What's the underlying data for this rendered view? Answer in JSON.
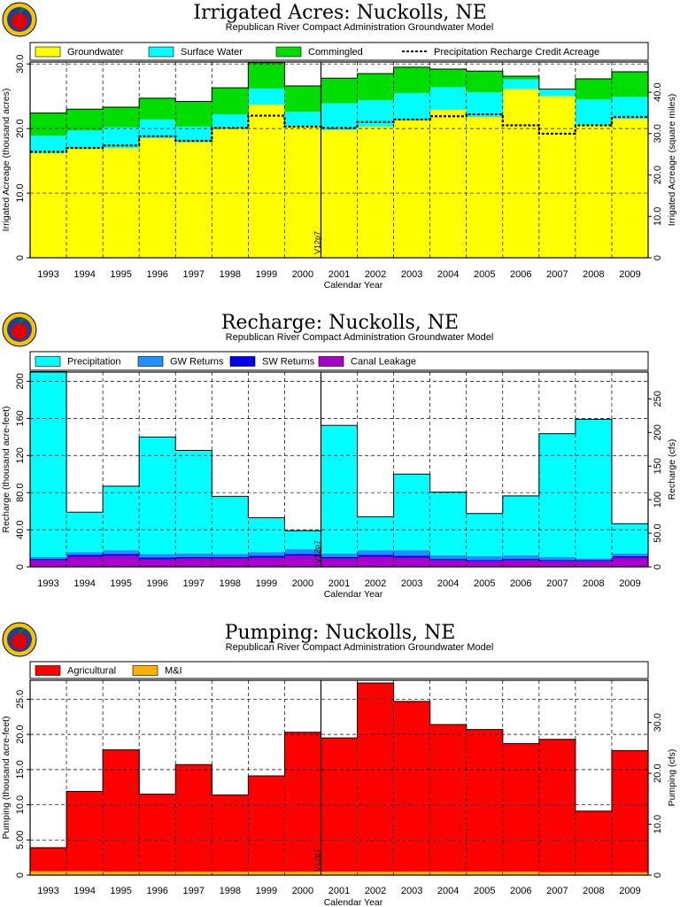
{
  "chart_data": [
    {
      "type": "area",
      "title": "Irrigated Acres: Nuckolls, NE",
      "subtitle": "Republican River Compact Administration Groundwater Model",
      "xlabel": "Calendar Year",
      "ylabel": "Irrigated Acreage (thousand acres)",
      "y2label": "Irrigated Acreage (square miles)",
      "categories": [
        "1993",
        "1994",
        "1995",
        "1996",
        "1997",
        "1998",
        "1999",
        "2000",
        "2001",
        "2002",
        "2003",
        "2004",
        "2005",
        "2006",
        "2007",
        "2008",
        "2009"
      ],
      "ylim": [
        0,
        30.3
      ],
      "yticks": [
        "0",
        "10.0",
        "20.0",
        "30.0"
      ],
      "y2lim": [
        0,
        47.3
      ],
      "y2ticks": [
        "0",
        "10.0",
        "20.0",
        "30.0",
        "40.0"
      ],
      "series": [
        {
          "name": "Groundwater",
          "color": "#ffff00",
          "values": [
            16.2,
            16.9,
            17.0,
            18.5,
            17.9,
            20.0,
            23.7,
            20.4,
            19.8,
            20.3,
            21.3,
            22.9,
            21.8,
            26.1,
            25.0,
            20.6,
            21.5
          ]
        },
        {
          "name": "Surface Water",
          "color": "#00ffff",
          "values": [
            2.7,
            2.8,
            3.2,
            2.9,
            2.4,
            2.2,
            2.5,
            2.2,
            4.1,
            4.1,
            4.2,
            3.5,
            3.8,
            1.5,
            1.1,
            3.9,
            3.4
          ]
        },
        {
          "name": "Commingled",
          "color": "#00dd00",
          "values": [
            3.5,
            3.3,
            3.1,
            3.3,
            3.9,
            4.1,
            4.0,
            4.0,
            3.9,
            4.1,
            4.0,
            2.8,
            3.3,
            0.5,
            0,
            3.2,
            3.9
          ]
        }
      ],
      "line_series": {
        "name": "Precipitation Recharge Credit Acreage",
        "values": [
          16.4,
          17.0,
          17.4,
          18.8,
          18.1,
          20.1,
          22.0,
          20.3,
          20.1,
          21.0,
          21.4,
          21.9,
          22.2,
          20.5,
          19.2,
          20.5,
          21.8
        ]
      },
      "vline_label": "V12p7",
      "grid": true,
      "legend_position": "top"
    },
    {
      "type": "area",
      "title": "Recharge: Nuckolls, NE",
      "subtitle": "Republican River Compact Administration Groundwater Model",
      "xlabel": "Calendar Year",
      "ylabel": "Recharge (thousand acre-feet)",
      "y2label": "Recharge (cfs)",
      "categories": [
        "1993",
        "1994",
        "1995",
        "1996",
        "1997",
        "1998",
        "1999",
        "2000",
        "2001",
        "2002",
        "2003",
        "2004",
        "2005",
        "2006",
        "2007",
        "2008",
        "2009"
      ],
      "ylim": [
        0,
        210
      ],
      "yticks": [
        "0",
        "40.0",
        "80.0",
        "120",
        "160",
        "200"
      ],
      "y2lim": [
        0,
        290
      ],
      "y2ticks": [
        "0",
        "50.0",
        "100",
        "150",
        "200",
        "250"
      ],
      "series": [
        {
          "name": "Canal Leakage",
          "color": "#aa00cc",
          "values": [
            7,
            11,
            12,
            8,
            9,
            9,
            10,
            12,
            9,
            11,
            10,
            7,
            6,
            7,
            6,
            6,
            10
          ]
        },
        {
          "name": "SW Returns",
          "color": "#0000ee",
          "values": [
            1.5,
            2,
            2,
            2,
            1.5,
            1.5,
            2,
            2,
            1.5,
            2,
            2,
            1.5,
            1.5,
            1.5,
            1.5,
            1.5,
            1.5
          ]
        },
        {
          "name": "GW Returns",
          "color": "#1e90ff",
          "values": [
            2,
            3,
            4,
            4,
            4,
            3.5,
            4,
            5,
            4,
            5,
            6,
            4,
            4,
            4,
            3,
            1.5,
            3
          ]
        },
        {
          "name": "Precipitation",
          "color": "#00ffff",
          "values": [
            200,
            43,
            69,
            126,
            111,
            62,
            37,
            20,
            138,
            36,
            82,
            68,
            46,
            64,
            133,
            150,
            32
          ]
        }
      ],
      "vline_label": "V12p7",
      "grid": true,
      "legend_position": "top"
    },
    {
      "type": "area",
      "title": "Pumping: Nuckolls, NE",
      "subtitle": "Republican River Compact Administration Groundwater Model",
      "xlabel": "Calendar Year",
      "ylabel": "Pumping (thousand acre-feet)",
      "y2label": "Pumping (cfs)",
      "categories": [
        "1993",
        "1994",
        "1995",
        "1996",
        "1997",
        "1998",
        "1999",
        "2000",
        "2001",
        "2002",
        "2003",
        "2004",
        "2005",
        "2006",
        "2007",
        "2008",
        "2009"
      ],
      "ylim": [
        0,
        27.7
      ],
      "yticks": [
        "0",
        "5.00",
        "10.0",
        "15.0",
        "20.0",
        "25.0"
      ],
      "y2lim": [
        0,
        38.3
      ],
      "y2ticks": [
        "0",
        "10.0",
        "20.0",
        "30.0"
      ],
      "series": [
        {
          "name": "M&I",
          "color": "#ffb000",
          "values": [
            0.55,
            0.55,
            0.5,
            0.5,
            0.5,
            0.5,
            0.5,
            0.5,
            0.5,
            0.5,
            0.5,
            0.5,
            0.5,
            0.5,
            0.4,
            0.4,
            0.4
          ]
        },
        {
          "name": "Agricultural",
          "color": "#ff0000",
          "values": [
            3.35,
            11.35,
            17.3,
            11.0,
            15.2,
            10.9,
            13.6,
            19.8,
            19.0,
            26.8,
            24.2,
            20.9,
            20.2,
            18.2,
            18.9,
            8.7,
            17.3
          ]
        }
      ],
      "vline_label": "V12p7",
      "grid": true,
      "legend_position": "top"
    }
  ]
}
